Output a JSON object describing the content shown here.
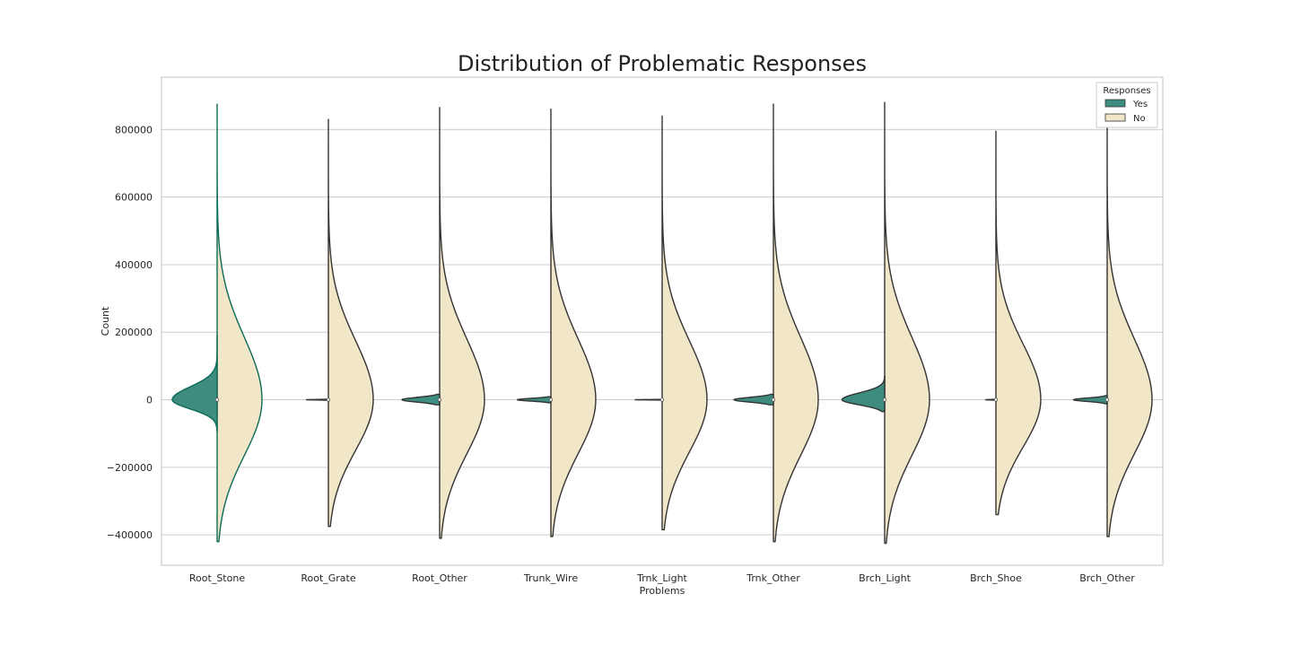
{
  "chart_data": {
    "type": "violin",
    "title": "Distribution of Problematic Responses",
    "xlabel": "Problems",
    "ylabel": "Count",
    "ylim": [
      -490000,
      955000
    ],
    "yticks": [
      -400000,
      -200000,
      0,
      200000,
      400000,
      600000,
      800000
    ],
    "ytick_labels": [
      "−400000",
      "−200000",
      "0",
      "200000",
      "400000",
      "600000",
      "800000"
    ],
    "grid": true,
    "split": true,
    "legend": {
      "title": "Responses",
      "placement": "top-right",
      "entries": [
        {
          "label": "Yes",
          "color": "#3d8c7f"
        },
        {
          "label": "No",
          "color": "#f2e6c9"
        }
      ]
    },
    "colors": {
      "yes_fill": "#3d8c7f",
      "no_fill": "#f2e6c9",
      "outline": "#333333",
      "highlight_outline": "#0b6b57",
      "grid": "#cccccc",
      "frame": "#cccccc"
    },
    "categories": [
      "Root_Stone",
      "Root_Grate",
      "Root_Other",
      "Trunk_Wire",
      "Trnk_Light",
      "Trnk_Other",
      "Brch_Light",
      "Brch_Shoe",
      "Brch_Other"
    ],
    "series": [
      {
        "name": "Yes",
        "violins": [
          {
            "min": -93000,
            "max": 190000,
            "mode": 0,
            "width": 1.0,
            "sd_low": 27000,
            "sd_high": 38000
          },
          {
            "min": -1500,
            "max": 1500,
            "mode": 0,
            "width": 0.49,
            "sd_low": 700,
            "sd_high": 700
          },
          {
            "min": -15000,
            "max": 16000,
            "mode": 0,
            "width": 0.84,
            "sd_low": 7000,
            "sd_high": 7000
          },
          {
            "min": -9000,
            "max": 9000,
            "mode": 0,
            "width": 0.75,
            "sd_low": 4000,
            "sd_high": 4000
          },
          {
            "min": -1000,
            "max": 1000,
            "mode": 0,
            "width": 0.6,
            "sd_low": 500,
            "sd_high": 500
          },
          {
            "min": -15000,
            "max": 16000,
            "mode": 0,
            "width": 0.88,
            "sd_low": 7000,
            "sd_high": 7000
          },
          {
            "min": -35000,
            "max": 70000,
            "mode": 0,
            "width": 0.95,
            "sd_low": 15000,
            "sd_high": 20000
          },
          {
            "min": -1500,
            "max": 1500,
            "mode": 0,
            "width": 0.23,
            "sd_low": 700,
            "sd_high": 700
          },
          {
            "min": -12000,
            "max": 12000,
            "mode": 0,
            "width": 0.75,
            "sd_low": 5000,
            "sd_high": 5000
          }
        ]
      },
      {
        "name": "No",
        "violins": [
          {
            "min": -420000,
            "max": 875000,
            "mode": 0,
            "width": 1.0,
            "sd_low": 165000,
            "sd_high": 185000
          },
          {
            "min": -375000,
            "max": 830000,
            "mode": 0,
            "width": 1.0,
            "sd_low": 150000,
            "sd_high": 175000
          },
          {
            "min": -410000,
            "max": 865000,
            "mode": 0,
            "width": 1.0,
            "sd_low": 160000,
            "sd_high": 180000
          },
          {
            "min": -405000,
            "max": 860000,
            "mode": 0,
            "width": 1.0,
            "sd_low": 160000,
            "sd_high": 180000
          },
          {
            "min": -385000,
            "max": 840000,
            "mode": 0,
            "width": 1.0,
            "sd_low": 155000,
            "sd_high": 175000
          },
          {
            "min": -420000,
            "max": 875000,
            "mode": 0,
            "width": 1.0,
            "sd_low": 165000,
            "sd_high": 185000
          },
          {
            "min": -425000,
            "max": 880000,
            "mode": 0,
            "width": 1.0,
            "sd_low": 165000,
            "sd_high": 185000
          },
          {
            "min": -340000,
            "max": 795000,
            "mode": 0,
            "width": 1.0,
            "sd_low": 140000,
            "sd_high": 165000
          },
          {
            "min": -405000,
            "max": 805000,
            "mode": 0,
            "width": 1.0,
            "sd_low": 160000,
            "sd_high": 180000
          }
        ]
      }
    ]
  }
}
